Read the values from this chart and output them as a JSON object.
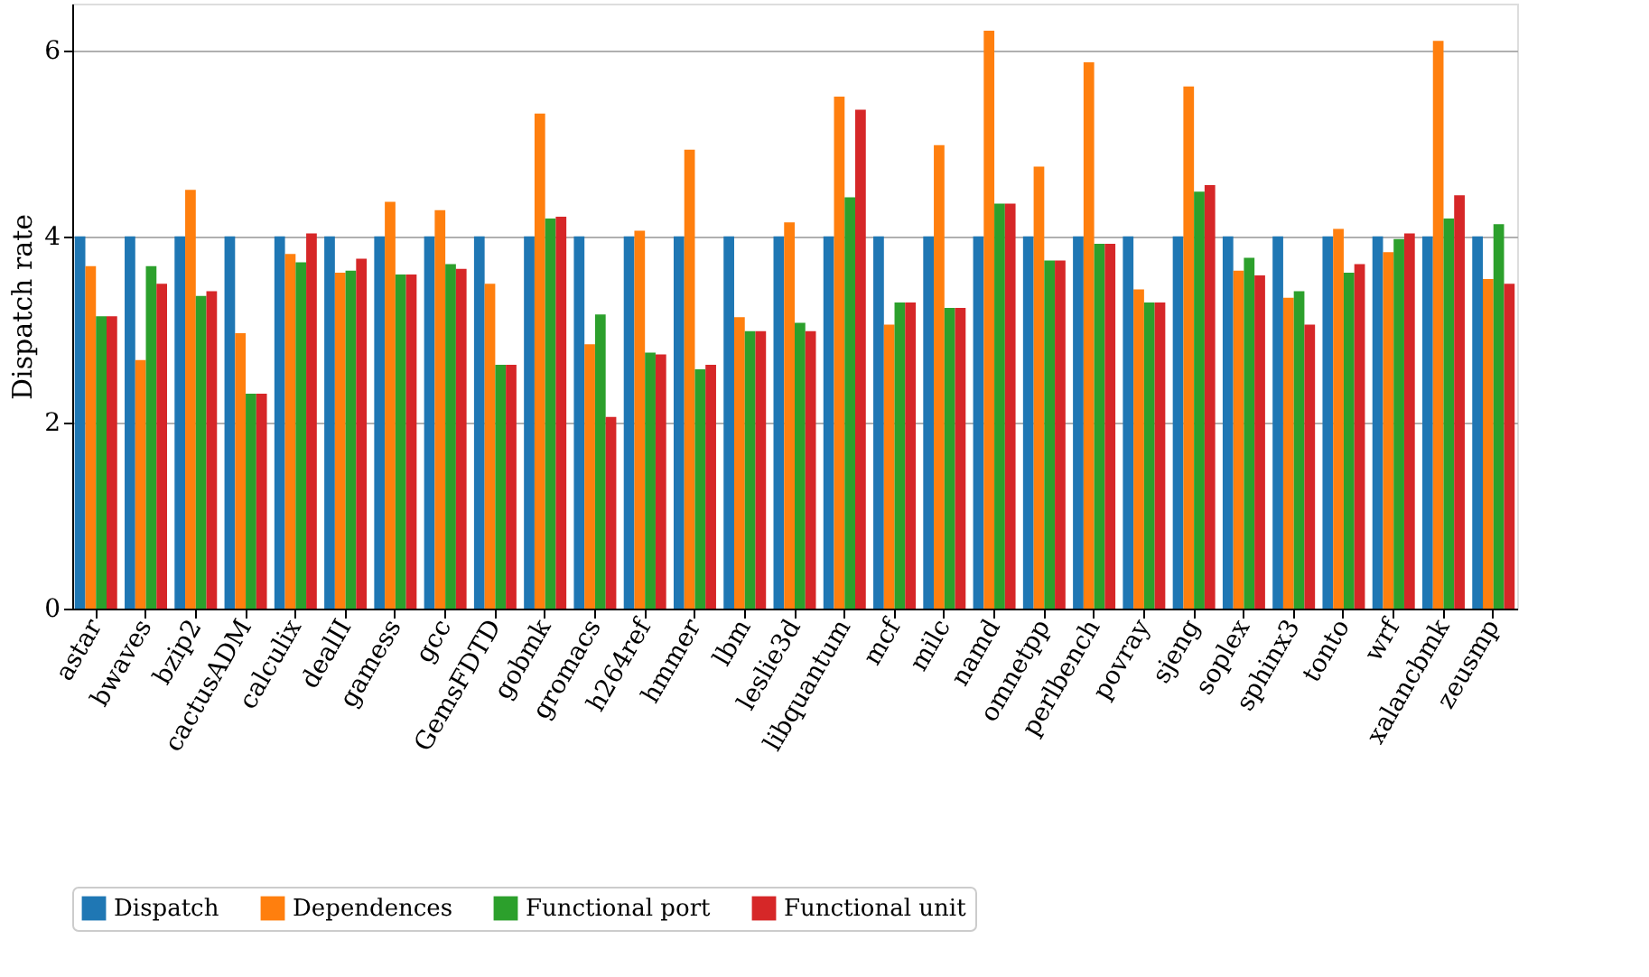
{
  "chart_data": {
    "type": "bar",
    "ylabel": "Dispatch rate",
    "categories": [
      "astar",
      "bwaves",
      "bzip2",
      "cactusADM",
      "calculix",
      "dealII",
      "gamess",
      "gcc",
      "GemsFDTD",
      "gobmk",
      "gromacs",
      "h264ref",
      "hmmer",
      "lbm",
      "leslie3d",
      "libquantum",
      "mcf",
      "milc",
      "namd",
      "omnetpp",
      "perlbench",
      "povray",
      "sjeng",
      "soplex",
      "sphinx3",
      "tonto",
      "wrf",
      "xalancbmk",
      "zeusmp"
    ],
    "series": [
      {
        "name": "Dispatch",
        "color": "#1f77b4",
        "values": [
          4,
          4,
          4,
          4,
          4,
          4,
          4,
          4,
          4,
          4,
          4,
          4,
          4,
          4,
          4,
          4,
          4,
          4,
          4,
          4,
          4,
          4,
          4,
          4,
          4,
          4,
          4,
          4,
          4
        ]
      },
      {
        "name": "Dependences",
        "color": "#ff7f0e",
        "values": [
          3.68,
          2.67,
          4.5,
          2.96,
          3.81,
          3.61,
          4.37,
          4.28,
          3.49,
          5.32,
          2.84,
          4.06,
          4.93,
          3.13,
          4.15,
          5.5,
          3.05,
          4.98,
          6.21,
          4.75,
          5.87,
          3.43,
          5.61,
          3.63,
          3.34,
          4.08,
          3.83,
          6.1,
          3.54
        ]
      },
      {
        "name": "Functional port",
        "color": "#2ca02c",
        "values": [
          3.14,
          3.68,
          3.36,
          2.31,
          3.72,
          3.63,
          3.59,
          3.7,
          2.62,
          4.19,
          3.16,
          2.75,
          2.57,
          2.98,
          3.07,
          4.42,
          3.29,
          3.23,
          4.35,
          3.74,
          3.92,
          3.29,
          4.48,
          3.77,
          3.41,
          3.61,
          3.97,
          4.19,
          4.13
        ]
      },
      {
        "name": "Functional unit",
        "color": "#d62728",
        "values": [
          3.14,
          3.49,
          3.41,
          2.31,
          4.03,
          3.76,
          3.59,
          3.65,
          2.62,
          4.21,
          2.06,
          2.73,
          2.62,
          2.98,
          2.98,
          5.36,
          3.29,
          3.23,
          4.35,
          3.74,
          3.92,
          3.29,
          4.55,
          3.58,
          3.05,
          3.7,
          4.03,
          4.44,
          3.49
        ]
      }
    ],
    "ylim": [
      0,
      6.5
    ],
    "yticks": [
      0,
      2,
      4,
      6
    ],
    "grid": "y",
    "legend": "bottom"
  }
}
